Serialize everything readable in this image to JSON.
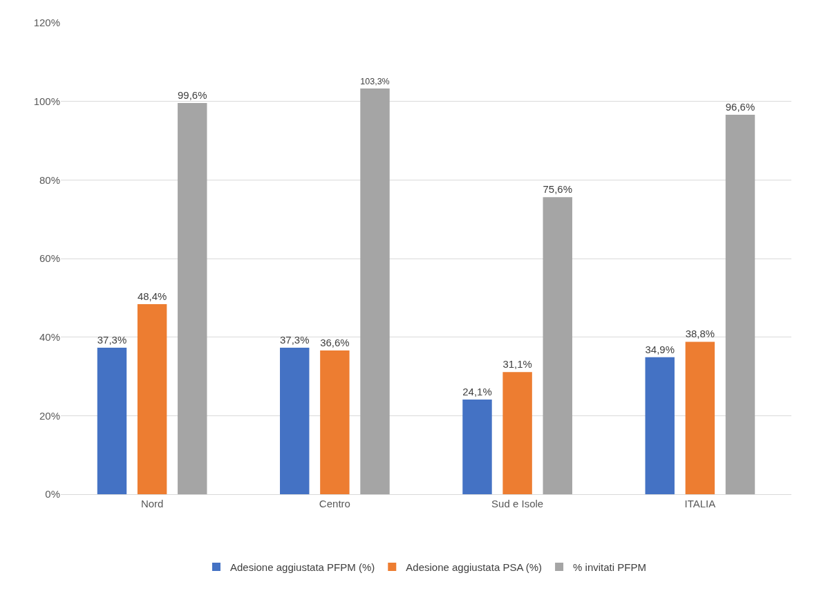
{
  "chart_data": {
    "type": "bar",
    "categories": [
      "Nord",
      "Centro",
      "Sud e Isole",
      "ITALIA"
    ],
    "series": [
      {
        "name": "Adesione aggiustata PFPM (%)",
        "color": "#4472c4",
        "values": [
          37.3,
          37.3,
          24.1,
          34.9
        ],
        "value_labels": [
          "37,3%",
          "37,3%",
          "24,1%",
          "34,9%"
        ]
      },
      {
        "name": "Adesione aggiustata PSA (%)",
        "color": "#ed7d31",
        "values": [
          48.4,
          36.6,
          31.1,
          38.8
        ],
        "value_labels": [
          "48,4%",
          "36,6%",
          "31,1%",
          "38,8%"
        ]
      },
      {
        "name": "% invitati PFPM",
        "color": "#a5a5a5",
        "values": [
          99.6,
          103.3,
          75.6,
          96.6
        ],
        "value_labels": [
          "99,6%",
          "103,3%",
          "75,6%",
          "96,6%"
        ]
      }
    ],
    "ylim": [
      0,
      120
    ],
    "yticks": [
      {
        "value": 0,
        "label": "0%"
      },
      {
        "value": 20,
        "label": "20%"
      },
      {
        "value": 40,
        "label": "40%"
      },
      {
        "value": 60,
        "label": "60%"
      },
      {
        "value": 80,
        "label": "80%"
      },
      {
        "value": 100,
        "label": "100%"
      },
      {
        "value": 120,
        "label": "120%"
      }
    ],
    "grid": "y",
    "legend": "bottom"
  }
}
